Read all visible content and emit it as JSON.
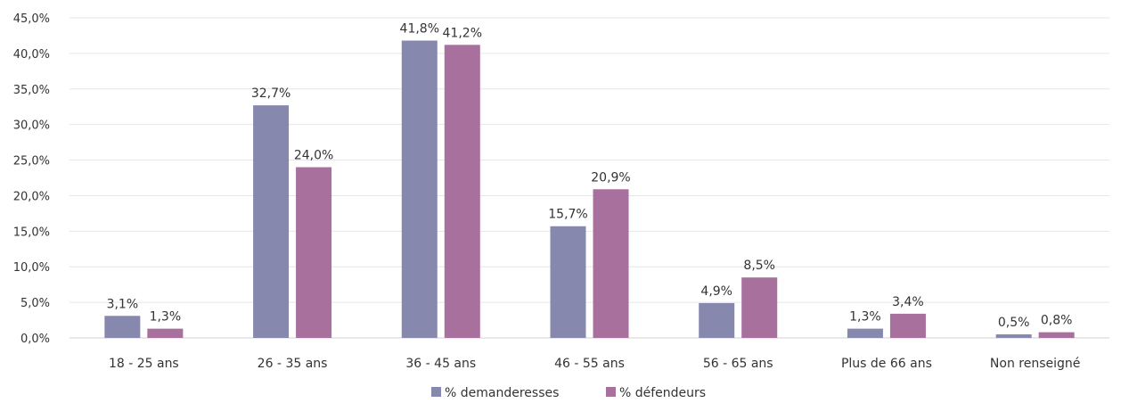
{
  "chart_data": {
    "type": "bar",
    "categories": [
      "18 - 25 ans",
      "26 - 35 ans",
      "36 - 45 ans",
      "46 - 55 ans",
      "56 - 65 ans",
      "Plus de 66 ans",
      "Non renseigné"
    ],
    "series": [
      {
        "name": "% demanderesses",
        "color": "#8788ae",
        "values": [
          3.1,
          32.7,
          41.8,
          15.7,
          4.9,
          1.3,
          0.5
        ],
        "labels": [
          "3,1%",
          "32,7%",
          "41,8%",
          "15,7%",
          "4,9%",
          "1,3%",
          "0,5%"
        ]
      },
      {
        "name": "% défendeurs",
        "color": "#a8709d",
        "values": [
          1.3,
          24.0,
          41.2,
          20.9,
          8.5,
          3.4,
          0.8
        ],
        "labels": [
          "1,3%",
          "24,0%",
          "41,2%",
          "20,9%",
          "8,5%",
          "3,4%",
          "0,8%"
        ]
      }
    ],
    "ylim": [
      0,
      45
    ],
    "yticks": [
      0,
      5,
      10,
      15,
      20,
      25,
      30,
      35,
      40,
      45
    ],
    "ytick_labels": [
      "0,0%",
      "5,0%",
      "10,0%",
      "15,0%",
      "20,0%",
      "25,0%",
      "30,0%",
      "35,0%",
      "40,0%",
      "45,0%"
    ],
    "grid": true,
    "legend_position": "bottom-center"
  }
}
